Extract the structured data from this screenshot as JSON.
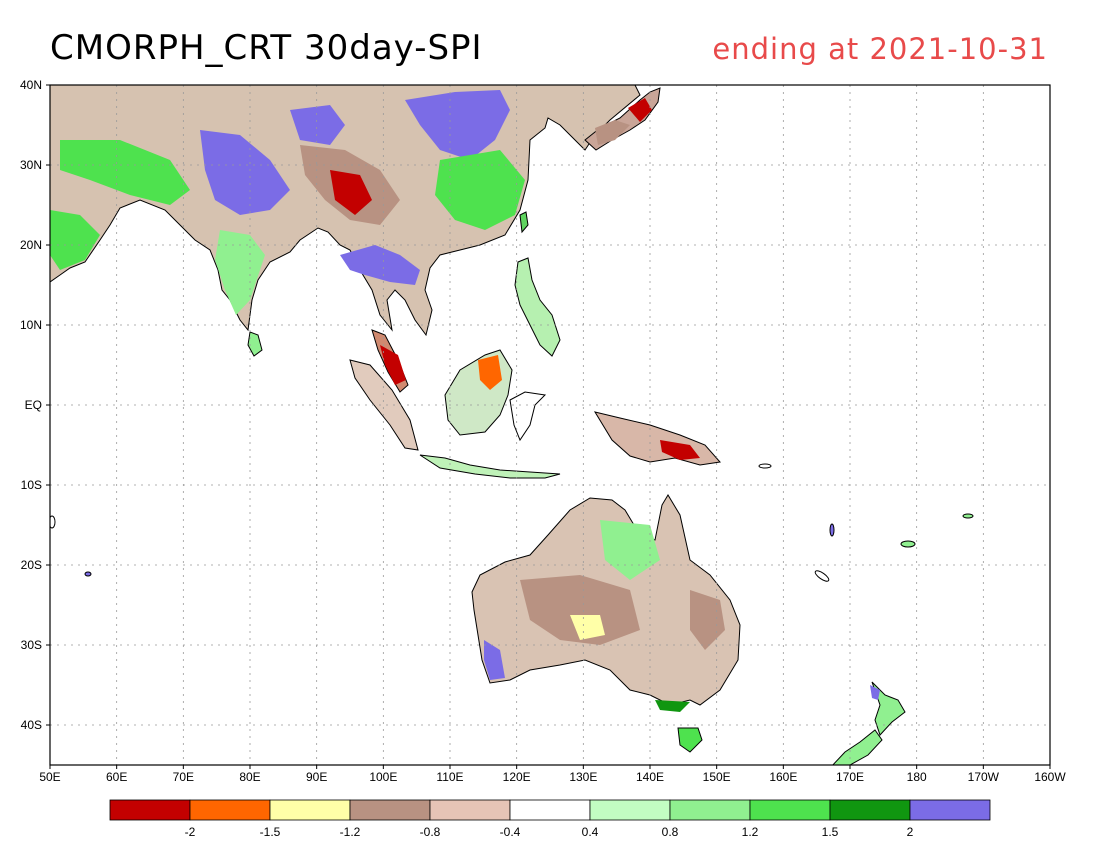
{
  "header": {
    "title": "CMORPH_CRT 30day-SPI",
    "period": "ending at 2021-10-31"
  },
  "map": {
    "lat_ticks": [
      "40N",
      "30N",
      "20N",
      "10N",
      "EQ",
      "10S",
      "20S",
      "30S",
      "40S"
    ],
    "lon_ticks": [
      "50E",
      "60E",
      "70E",
      "80E",
      "90E",
      "100E",
      "110E",
      "120E",
      "130E",
      "140E",
      "150E",
      "160E",
      "170E",
      "180",
      "170W",
      "160W"
    ],
    "extent": {
      "lon_min": 50,
      "lon_max": 200,
      "lat_min": -45,
      "lat_max": 40
    },
    "grid": true
  },
  "colorbar": {
    "colors": [
      "#c30000",
      "#ff6600",
      "#ffffa8",
      "#b89282",
      "#e6c4b6",
      "#ffffff",
      "#c2fdc2",
      "#90f090",
      "#4ee24e",
      "#109610",
      "#7b6ce6"
    ],
    "labels": [
      "-2",
      "-1.5",
      "-1.2",
      "-0.8",
      "-0.4",
      "0.4",
      "0.8",
      "1.2",
      "1.5",
      "2"
    ]
  },
  "colors": {
    "dry_extreme": "#c30000",
    "wet_extreme": "#7b6ce6",
    "title_accent": "#e84a4a"
  }
}
